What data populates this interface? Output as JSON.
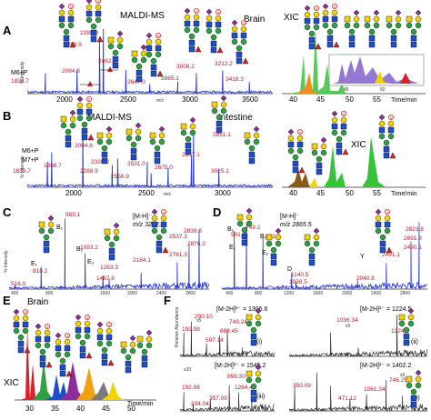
{
  "panels": {
    "A": {
      "letter": "A",
      "title": "MALDI-MS",
      "tissue": "Brain",
      "ylabel": "% Intensity",
      "xlabel": "m/z",
      "ticks": [
        "2000",
        "2500",
        "3000",
        "3500"
      ],
      "peaks": [
        {
          "mz": "1839.7",
          "label": "M6+P",
          "rel": 0.3
        },
        {
          "mz": "2084.8",
          "rel": 0.35
        },
        {
          "mz": "2258.9",
          "rel": 0.82
        },
        {
          "mz": "2288.9",
          "rel": 0.95
        },
        {
          "mz": "2462.9",
          "rel": 0.35
        },
        {
          "mz": "2647.0",
          "rel": 0.14
        },
        {
          "mz": "2865.1",
          "rel": 0.18
        },
        {
          "mz": "3008.2",
          "rel": 0.3
        },
        {
          "mz": "3212.2",
          "rel": 0.34
        },
        {
          "mz": "3418.3",
          "rel": 0.17
        }
      ]
    },
    "A_xic": {
      "label": "XIC",
      "ticks": [
        "40",
        "45",
        "50",
        "55"
      ],
      "xlabel": "Time/min",
      "inset_ticks": [
        "45",
        "50"
      ]
    },
    "B": {
      "letter": "B",
      "title": "MALDI-MS",
      "tissue": "Intestine",
      "ylabel": "% Intensity",
      "xlabel": "m/z",
      "ticks": [
        "2000",
        "2500",
        "3000"
      ],
      "peaks": [
        {
          "mz": "1839.7",
          "label": "M6+P",
          "rel": 0.4
        },
        {
          "mz": "1868.7",
          "label": "M7+P",
          "rel": 0.55
        },
        {
          "mz": "2084.8",
          "rel": 0.85
        },
        {
          "mz": "2288.9",
          "rel": 0.35
        },
        {
          "mz": "2326.0",
          "rel": 0.45
        },
        {
          "mz": "2556.9",
          "rel": 0.22
        },
        {
          "mz": "2531.0",
          "rel": 0.4
        },
        {
          "mz": "2675.0",
          "rel": 0.3
        },
        {
          "mz": "2837.1",
          "rel": 0.5
        },
        {
          "mz": "2851.1",
          "rel": 0.9
        },
        {
          "mz": "3025.1",
          "rel": 0.28
        }
      ]
    },
    "B_xic": {
      "label": "XIC",
      "ticks": [
        "40",
        "45",
        "50",
        "55"
      ],
      "xlabel": "Time/min"
    },
    "C": {
      "letter": "C",
      "precursor": "[M-H]⁻",
      "precursor_mz": "m/z 3212.2",
      "ylabel": "% Intensity",
      "fragments": [
        "516.0",
        "569.1",
        "818.2",
        "1093.2",
        "1263.3",
        "1467.8",
        "2184.1",
        "2761.3",
        "2537.3",
        "2839.8",
        "2876.3"
      ],
      "ion_labels": [
        "B₁",
        "E₁",
        "B₂",
        "E₂"
      ],
      "ticks": [
        "400",
        "800",
        "1600",
        "2000",
        "2400",
        "2800"
      ]
    },
    "D": {
      "letter": "D",
      "precursor": "[M-H]⁻",
      "precursor_mz": "m/z 2865.5",
      "fragments": [
        "501.0",
        "749.2",
        "922.2",
        "1140.5",
        "1038.5",
        "2040.8",
        "2491.1",
        "2823.8",
        "2691.8",
        "2490.1"
      ],
      "ion_labels": [
        "B₁",
        "E₁",
        "B₂",
        "E₂",
        "D",
        "Y"
      ],
      "ticks": [
        "400",
        "800",
        "1200",
        "1600",
        "2000",
        "2400",
        "2800"
      ]
    },
    "E": {
      "letter": "E",
      "tissue": "Brain",
      "label": "XIC",
      "xlabel": "Time/min",
      "ticks": [
        "30",
        "35",
        "40",
        "45",
        "50"
      ]
    },
    "F": {
      "letter": "F",
      "ylabel": "Relative Abundance",
      "sub": [
        {
          "id": "(i)",
          "ion": "[M-2H]²⁻ = 1306.6",
          "frags": [
            "192.98",
            "290.10",
            "597.14",
            "688.45",
            "749.24"
          ],
          "scale": "x5"
        },
        {
          "id": "(ii)",
          "ion": "[M-2H]²⁻ = 1224.5",
          "frags": [
            "1036.34",
            "1224.5"
          ],
          "scale": "x5"
        },
        {
          "id": "(iii)",
          "ion": "[M-2H]²⁻ = 1545.2",
          "frags": [
            "192.98",
            "234.04",
            "357.09",
            "899.30",
            "1264.41"
          ],
          "scale": "x20"
        },
        {
          "id": "(iv)",
          "ion": "[M-2H]²⁻ = 1402.2",
          "frags": [
            "350.09",
            "471.12",
            "746.25",
            "1061.34"
          ],
          "scale": "x5"
        }
      ]
    }
  },
  "colors": {
    "spectrum_blue": "#2b3bd0",
    "mz_red": "#b0182a",
    "galnac_yellow": "#f2d300",
    "glcnac_blue": "#1f4fc8",
    "man_green": "#2ea043",
    "sia_purple": "#8e2c9a",
    "fuc_red": "#d8232a",
    "sulfate_red": "#e02020"
  },
  "chart_data": [
    {
      "type": "line",
      "title": "MALDI-MS",
      "ylabel": "% Intensity",
      "xlabel": "m/z",
      "x": [
        1839.7,
        2084.8,
        2258.9,
        2288.9,
        2462.9,
        2647.0,
        2865.1,
        3008.2,
        3212.2,
        3418.3
      ],
      "series": [
        {
          "values": [
            30,
            35,
            82,
            95,
            35,
            14,
            18,
            30,
            34,
            17
          ]
        }
      ]
    },
    {
      "type": "line",
      "title": "MALDI-MS",
      "ylabel": "% Intensity",
      "xlabel": "m/z",
      "x": [
        1839.7,
        1868.7,
        2084.8,
        2288.9,
        2326.0,
        2531.0,
        2556.9,
        2675.0,
        2837.1,
        2851.1,
        3025.1
      ],
      "series": [
        {
          "values": [
            40,
            55,
            85,
            35,
            45,
            40,
            22,
            30,
            50,
            90,
            28
          ]
        }
      ]
    }
  ]
}
